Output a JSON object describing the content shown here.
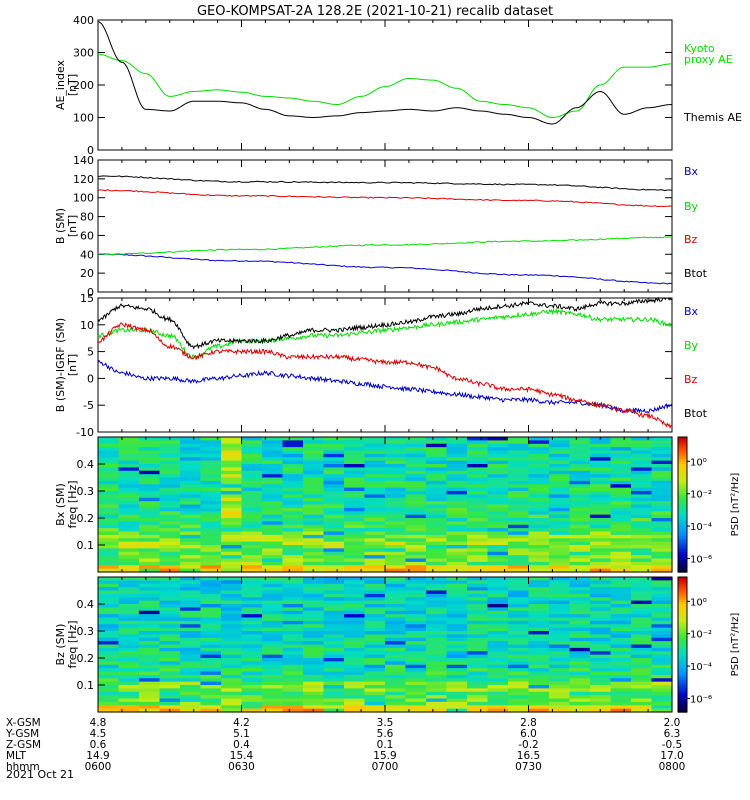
{
  "title": "GEO-KOMPSAT-2A 128.2E (2021-10-21) recalib dataset",
  "date_label": "2021 Oct 21",
  "orbit_table": {
    "labels": [
      "X-GSM",
      "Y-GSM",
      "Z-GSM",
      "MLT",
      "hhmm"
    ],
    "columns": [
      [
        "4.8",
        "4.5",
        "0.6",
        "14.9",
        "0600"
      ],
      [
        "4.2",
        "5.1",
        "0.4",
        "15.4",
        "0630"
      ],
      [
        "3.5",
        "5.6",
        "0.1",
        "15.9",
        "0700"
      ],
      [
        "2.8",
        "6.0",
        "-0.2",
        "16.5",
        "0730"
      ],
      [
        "2.0",
        "6.3",
        "-0.5",
        "17.0",
        "0800"
      ]
    ]
  },
  "colors": {
    "black": "#000000",
    "green": "#00dd00",
    "red": "#dd0000",
    "blue": "#0000cc"
  },
  "chart_data": [
    {
      "type": "line",
      "ylabel": [
        "AE_index",
        "[nT]"
      ],
      "ylim": [
        0,
        400
      ],
      "yticks": [
        0,
        100,
        200,
        300,
        400
      ],
      "x": [
        0,
        5,
        10,
        15,
        20,
        25,
        30,
        35,
        40,
        45,
        50,
        55,
        60,
        65,
        70,
        75,
        80,
        85,
        90,
        95,
        100,
        105,
        110,
        115,
        120
      ],
      "series": [
        {
          "name": "Kyoto proxy AE",
          "label_lines": [
            "Kyoto",
            "proxy AE"
          ],
          "color": "green",
          "values": [
            295,
            275,
            235,
            165,
            180,
            185,
            178,
            165,
            160,
            150,
            140,
            165,
            195,
            220,
            215,
            190,
            150,
            140,
            130,
            100,
            120,
            200,
            255,
            255,
            265
          ]
        },
        {
          "name": "Themis AE",
          "label_lines": [
            "Themis AE"
          ],
          "color": "black",
          "values": [
            395,
            270,
            125,
            120,
            150,
            150,
            145,
            125,
            105,
            100,
            105,
            115,
            120,
            125,
            120,
            130,
            120,
            110,
            100,
            80,
            130,
            180,
            110,
            130,
            140
          ]
        }
      ]
    },
    {
      "type": "line",
      "ylabel": [
        "B (SM)",
        "[nT]"
      ],
      "ylim": [
        0,
        140
      ],
      "yticks": [
        0,
        20,
        40,
        60,
        80,
        100,
        120,
        140
      ],
      "x": [
        0,
        30,
        60,
        90,
        120
      ],
      "series": [
        {
          "name": "Bx",
          "color": "blue",
          "values": [
            40,
            33,
            26,
            18,
            9
          ]
        },
        {
          "name": "By",
          "color": "green",
          "values": [
            40,
            45,
            50,
            54,
            58
          ]
        },
        {
          "name": "Bz",
          "color": "red",
          "values": [
            108,
            102,
            100,
            97,
            91
          ]
        },
        {
          "name": "Btot",
          "color": "black",
          "values": [
            123,
            117,
            116,
            114,
            108
          ]
        }
      ],
      "label_colors": {
        "Bx": "blue",
        "By": "green",
        "Bz": "red",
        "Btot": "black"
      }
    },
    {
      "type": "line",
      "ylabel": [
        "B (SM)-IGRF (SM)",
        "[nT]"
      ],
      "ylim": [
        -10,
        15
      ],
      "yticks": [
        -10,
        -5,
        0,
        5,
        10,
        15
      ],
      "x": [
        0,
        5,
        10,
        15,
        20,
        25,
        30,
        35,
        40,
        45,
        50,
        55,
        60,
        65,
        70,
        75,
        80,
        85,
        90,
        95,
        100,
        105,
        110,
        115,
        120
      ],
      "series": [
        {
          "name": "Bx",
          "color": "blue",
          "values": [
            3,
            1,
            0,
            0,
            -0.5,
            0,
            0.5,
            1,
            0.5,
            0,
            -0.5,
            -1,
            -1.5,
            -2,
            -2.5,
            -3,
            -3.5,
            -4,
            -4,
            -4.5,
            -4.5,
            -5,
            -6,
            -6,
            -5
          ]
        },
        {
          "name": "By",
          "color": "green",
          "values": [
            8,
            9,
            9,
            8,
            4,
            6,
            7,
            7,
            7.5,
            8,
            8,
            8.5,
            9,
            9.5,
            10,
            10.5,
            11,
            11.5,
            12,
            12.5,
            12,
            11,
            11,
            11,
            10
          ]
        },
        {
          "name": "Bz",
          "color": "red",
          "values": [
            7,
            10,
            9,
            6,
            4,
            5,
            5,
            5,
            4,
            4,
            4,
            3.5,
            3,
            3,
            2,
            0,
            -1,
            -2,
            -2,
            -3,
            -4,
            -5,
            -6,
            -7,
            -9
          ]
        },
        {
          "name": "Btot",
          "color": "black",
          "values": [
            11,
            13.5,
            13,
            11,
            6,
            7,
            7,
            7,
            8,
            9,
            9,
            9.5,
            10,
            10.5,
            11.5,
            12,
            13,
            13.5,
            14,
            13.5,
            13,
            14,
            14,
            14.5,
            15
          ]
        }
      ],
      "label_colors": {
        "Bx": "blue",
        "By": "green",
        "Bz": "red",
        "Btot": "black"
      }
    },
    {
      "type": "heatmap",
      "ylabel": [
        "Bx (SM)",
        "freq [Hz]"
      ],
      "ylim": [
        0,
        0.5
      ],
      "yticks": [
        "0.1",
        "0.2",
        "0.3",
        "0.4"
      ],
      "colorbar_label": "PSD [nT²/Hz]",
      "colorbar_ticks": [
        "10⁰",
        "10⁻²",
        "10⁻⁴",
        "10⁻⁶"
      ]
    },
    {
      "type": "heatmap",
      "ylabel": [
        "Bz (SM)",
        "freq [Hz]"
      ],
      "ylim": [
        0,
        0.5
      ],
      "yticks": [
        "0.1",
        "0.2",
        "0.3",
        "0.4"
      ],
      "colorbar_label": "PSD [nT²/Hz]",
      "colorbar_ticks": [
        "10⁰",
        "10⁻²",
        "10⁻⁴",
        "10⁻⁶"
      ]
    }
  ]
}
